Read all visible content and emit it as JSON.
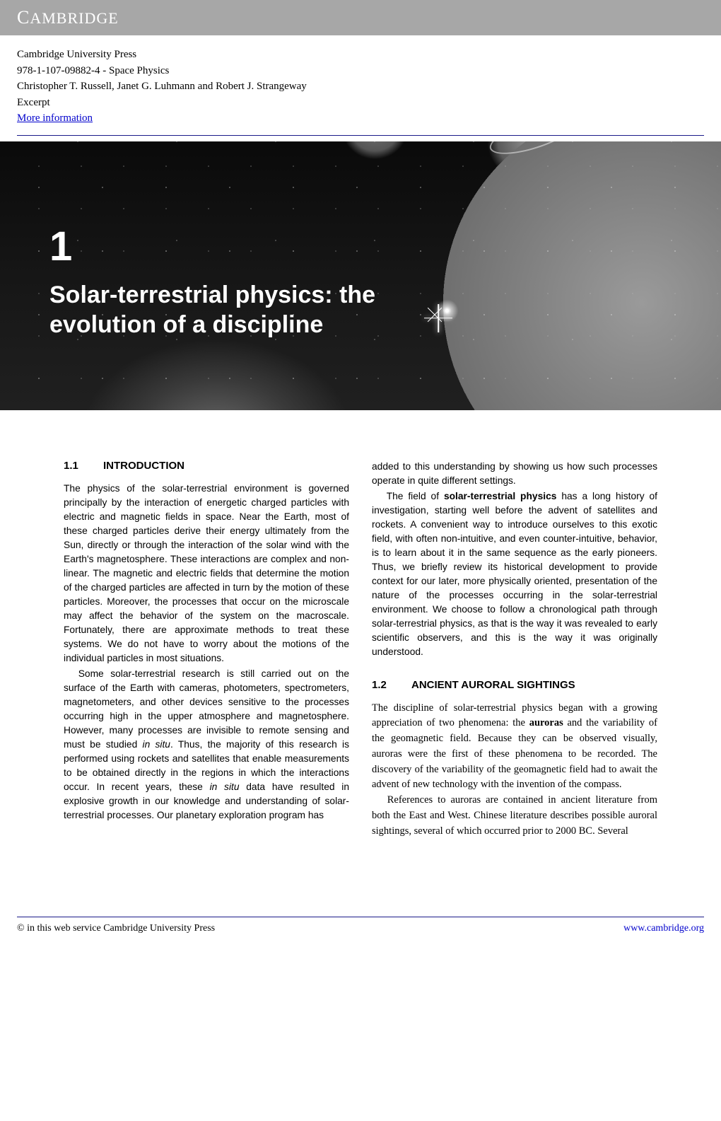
{
  "header": {
    "brand": "CAMBRIDGE"
  },
  "meta": {
    "publisher": "Cambridge University Press",
    "isbn_title": "978-1-107-09882-4 - Space Physics",
    "authors": "Christopher T. Russell, Janet G. Luhmann and Robert J. Strangeway",
    "excerpt": "Excerpt",
    "more_info": "More information"
  },
  "chapter": {
    "number": "1",
    "title_line1": "Solar-terrestrial physics: the",
    "title_line2": "evolution of a discipline"
  },
  "sections": {
    "s11": {
      "num": "1.1",
      "title": "INTRODUCTION"
    },
    "s12": {
      "num": "1.2",
      "title": "ANCIENT AURORAL SIGHTINGS"
    }
  },
  "body": {
    "p1": "The physics of the solar-terrestrial environment is governed principally by the interaction of energetic charged particles with electric and magnetic fields in space. Near the Earth, most of these charged particles derive their energy ultimately from the Sun, directly or through the interaction of the solar wind with the Earth's magnetosphere. These interactions are complex and non-linear. The magnetic and electric fields that determine the motion of the charged particles are affected in turn by the motion of these particles. Moreover, the processes that occur on the microscale may affect the behavior of the system on the macroscale. Fortunately, there are approximate methods to treat these systems. We do not have to worry about the motions of the individual particles in most situations.",
    "p2a": "Some solar-terrestrial research is still carried out on the surface of the Earth with cameras, photometers, spectrometers, magnetometers, and other devices sensitive to the processes occurring high in the upper atmosphere and magnetosphere. However, many processes are invisible to remote sensing and must be studied ",
    "p2b": ". Thus, the majority of this research is performed using rockets and satellites that enable measurements to be obtained directly in the regions in which the interactions occur. In recent years, these ",
    "p2c": " data have resulted in explosive growth in our knowledge and understanding of solar-terrestrial processes. Our planetary exploration program has ",
    "insitu": "in situ",
    "p3": "added to this understanding by showing us how such processes operate in quite different settings.",
    "p4a": "The field of ",
    "p4bold": "solar-terrestrial physics",
    "p4b": " has a long history of investigation, starting well before the advent of satellites and rockets. A convenient way to introduce ourselves to this exotic field, with often non-intuitive, and even counter-intuitive, behavior, is to learn about it in the same sequence as the early pioneers. Thus, we briefly review its historical development to provide context for our later, more physically oriented, presentation of the nature of the processes occurring in the solar-terrestrial environment. We choose to follow a chronological path through solar-terrestrial physics, as that is the way it was revealed to early scientific observers, and this is the way it was originally understood.",
    "p5a": "The discipline of solar-terrestrial physics began with a growing appreciation of two phenomena: the ",
    "p5bold": "auroras",
    "p5b": " and the variability of the geomagnetic field. Because they can be observed visually, auroras were the first of these phenomena to be recorded. The discovery of the variability of the geomagnetic field had to await the advent of new technology with the invention of the compass.",
    "p6": "References to auroras are contained in ancient literature from both the East and West. Chinese literature describes possible auroral sightings, several of which occurred prior to 2000 BC. Several"
  },
  "footer": {
    "left": "© in this web service Cambridge University Press",
    "right": "www.cambridge.org"
  },
  "colors": {
    "header_bg": "#a7a7a7",
    "link": "#0000cc",
    "rule": "#1a1a8a",
    "hero_bg": "#101010",
    "text": "#000000"
  }
}
